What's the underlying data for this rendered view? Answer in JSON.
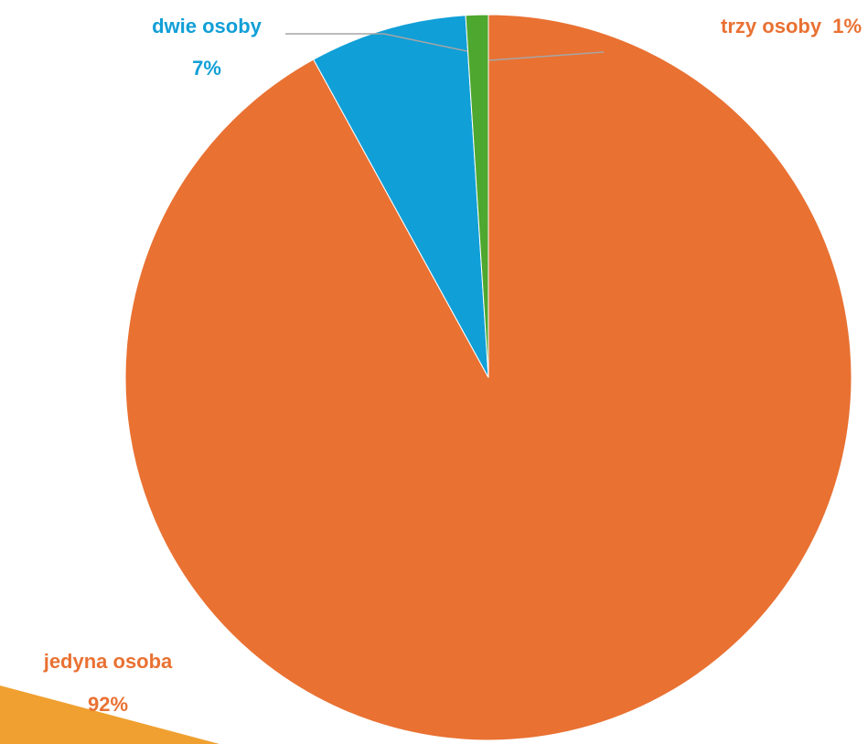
{
  "chart_data": {
    "type": "pie",
    "slices": [
      {
        "label": "jedyna osoba",
        "value": 92,
        "value_text": "92%",
        "color": "#e97132"
      },
      {
        "label": "dwie osoby",
        "value": 7,
        "value_text": "7%",
        "color": "#119fd7"
      },
      {
        "label": "trzy osoby",
        "value": 1,
        "value_text": "1%",
        "color": "#4ea72e"
      }
    ],
    "start_angle_deg": 0,
    "direction": "clockwise",
    "label_colors": {
      "jedyna osoba": "#e97132",
      "dwie osoby": "#119fd7",
      "trzy osoby": "#e97132"
    },
    "leader_line_color": "#a6a6a6",
    "decoration_color": "#f0a030"
  }
}
